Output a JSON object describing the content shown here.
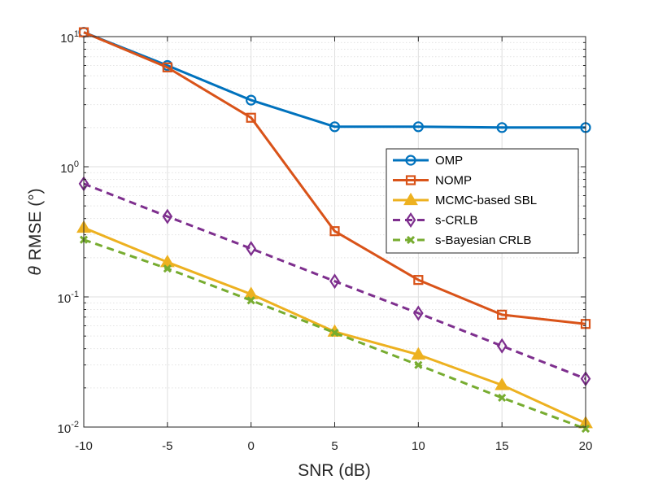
{
  "chart_data": {
    "type": "line",
    "xlabel": "SNR (dB)",
    "ylabel_symbol": "θ",
    "ylabel_text": "RMSE (°)",
    "yscale": "log",
    "grid": true,
    "minor_grid": true,
    "legend_position": "top-right",
    "x": [
      -10,
      -5,
      0,
      5,
      10,
      15,
      20
    ],
    "xlim": [
      -10,
      20
    ],
    "ylim": [
      0.01,
      10
    ],
    "x_ticks": [
      "-10",
      "-5",
      "0",
      "5",
      "10",
      "15",
      "20"
    ],
    "y_ticks": [
      {
        "base": "10",
        "exp": "-2",
        "value": 0.01
      },
      {
        "base": "10",
        "exp": "-1",
        "value": 0.1
      },
      {
        "base": "10",
        "exp": "0",
        "value": 1
      },
      {
        "base": "10",
        "exp": "1",
        "value": 10
      }
    ],
    "series": [
      {
        "name": "OMP",
        "color": "#0072BD",
        "dash": "solid",
        "marker": "circle",
        "values": [
          10.8,
          6.0,
          3.25,
          2.03,
          2.03,
          2.0,
          2.0
        ]
      },
      {
        "name": "NOMP",
        "color": "#D95319",
        "dash": "solid",
        "marker": "square",
        "values": [
          10.8,
          5.8,
          2.38,
          0.32,
          0.135,
          0.073,
          0.062
        ]
      },
      {
        "name": "MCMC-based SBL",
        "color": "#EDB120",
        "dash": "solid",
        "marker": "triangle",
        "values": [
          0.34,
          0.185,
          0.105,
          0.054,
          0.036,
          0.021,
          0.0107
        ]
      },
      {
        "name": "s-CRLB",
        "color": "#7E2F8E",
        "dash": "dashed",
        "marker": "diamond",
        "values": [
          0.74,
          0.415,
          0.235,
          0.132,
          0.075,
          0.042,
          0.0235
        ]
      },
      {
        "name": "s-Bayesian CRLB",
        "color": "#77AC30",
        "dash": "dashed",
        "marker": "x",
        "values": [
          0.275,
          0.165,
          0.094,
          0.053,
          0.03,
          0.0168,
          0.0097
        ]
      }
    ]
  }
}
